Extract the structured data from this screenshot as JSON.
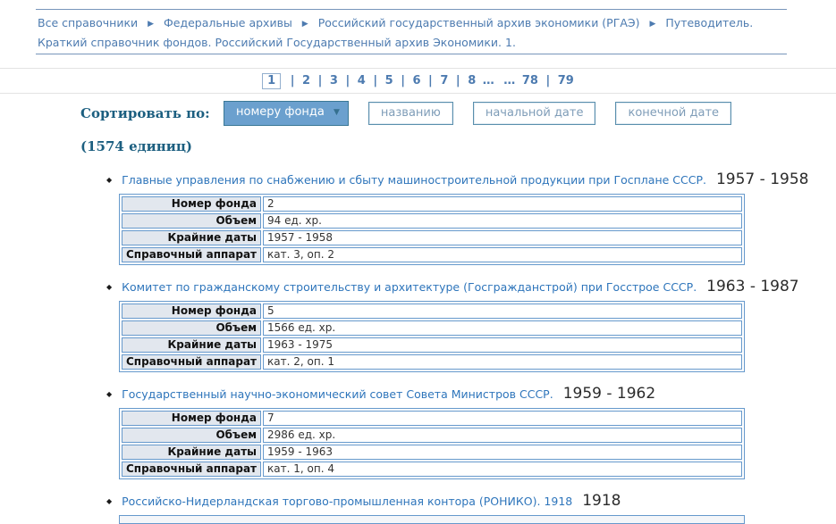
{
  "breadcrumb": {
    "separator": "▶",
    "items": [
      "Все справочники",
      "Федеральные архивы",
      "Российский государственный архив экономики (РГАЭ)",
      "Путеводитель. Краткий справочник фондов. Российский Государственный архив Экономики. 1."
    ]
  },
  "pagination": {
    "current": "1",
    "separator": "|",
    "ellipsis": "…",
    "pages": [
      "2",
      "3",
      "4",
      "5",
      "6",
      "7",
      "8"
    ],
    "last_pages": [
      "78",
      "79"
    ]
  },
  "sort": {
    "label": "Сортировать по:",
    "count": "(1574 единиц)",
    "active_button": {
      "label": "номеру фонда",
      "arrow": "▼"
    },
    "buttons": [
      "названию",
      "начальной дате",
      "конечной дате"
    ],
    "colors": {
      "active_bg": "#6ba0ce",
      "active_border": "#3a7896",
      "inactive_text": "#7f9db8",
      "heading_text": "#1c5f80"
    }
  },
  "fond_list": {
    "bullet": "◆",
    "row_labels": {
      "number": "Номер фонда",
      "volume": "Объем",
      "dates": "Крайние даты",
      "reference": "Справочный аппарат"
    },
    "colors": {
      "table_border": "#6699cc",
      "label_bg": "#e2e7ee",
      "link": "#2e75bb"
    },
    "items": [
      {
        "title": "Главные управления по снабжению и сбыту машиностроительной продукции при Госплане СССР.",
        "date_range": "1957 - 1958",
        "number": "2",
        "volume": "94 ед. хр.",
        "dates": "1957 - 1958",
        "reference": "кат. 3, оп. 2"
      },
      {
        "title": "Комитет по гражданскому строительству и архитектуре (Госгражданстрой) при Госстрое СССР.",
        "date_range": "1963 - 1987",
        "number": "5",
        "volume": "1566 ед. хр.",
        "dates": "1963 - 1975",
        "reference": "кат. 2, оп. 1"
      },
      {
        "title": "Государственный научно-экономический совет Совета Министров СССР.",
        "date_range": "1959 - 1962",
        "number": "7",
        "volume": "2986 ед. хр.",
        "dates": "1959 - 1963",
        "reference": "кат. 1, оп. 4"
      },
      {
        "title": "Российско-Нидерландская торгово-промышленная контора (РОНИКО). 1918",
        "date_range": "1918"
      }
    ]
  }
}
